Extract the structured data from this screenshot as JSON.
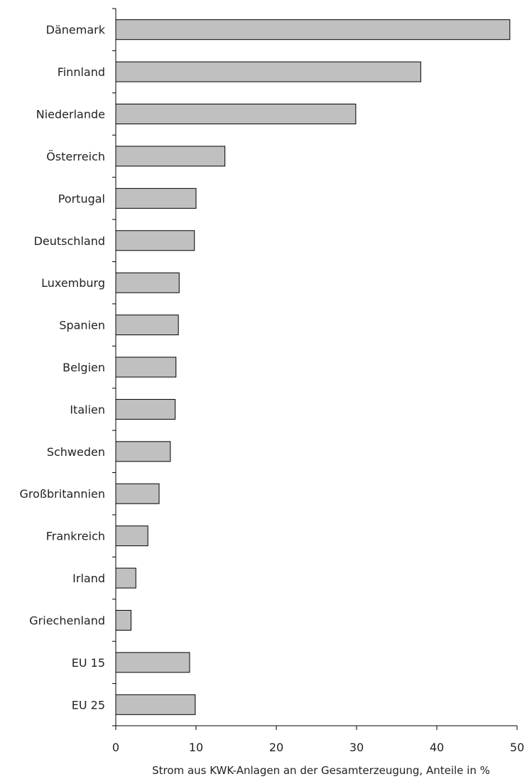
{
  "chart_data": {
    "type": "bar",
    "orientation": "horizontal",
    "categories": [
      "Dänemark",
      "Finnland",
      "Niederlande",
      "Österreich",
      "Portugal",
      "Deutschland",
      "Luxemburg",
      "Spanien",
      "Belgien",
      "Italien",
      "Schweden",
      "Großbritannien",
      "Frankreich",
      "Irland",
      "Griechenland",
      "EU 15",
      "EU 25"
    ],
    "values": [
      49.1,
      38.0,
      29.9,
      13.6,
      10.0,
      9.8,
      7.9,
      7.8,
      7.5,
      7.4,
      6.8,
      5.4,
      4.0,
      2.5,
      1.9,
      9.2,
      9.9
    ],
    "xlabel": "Strom aus KWK-Anlagen an der Gesamterzeugung, Anteile in %",
    "xlim": [
      0,
      50
    ],
    "xticks": [
      0,
      10,
      20,
      30,
      40,
      50
    ],
    "grid": false,
    "bar_color": "#c0c0c0"
  }
}
